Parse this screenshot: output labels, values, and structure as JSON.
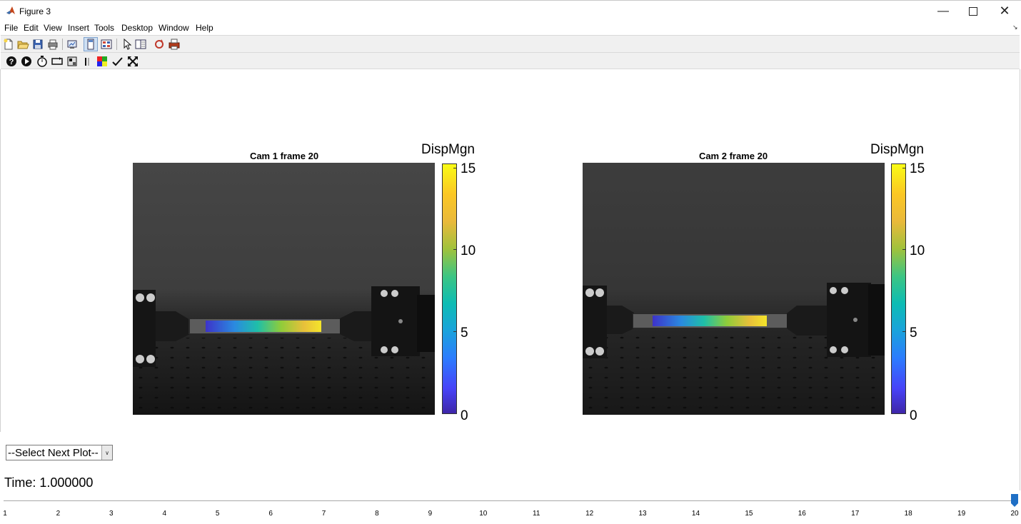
{
  "window": {
    "title": "Figure 3"
  },
  "menu": [
    "File",
    "Edit",
    "View",
    "Insert",
    "Tools",
    "Desktop",
    "Window",
    "Help"
  ],
  "toolbar1": [
    {
      "icon": "new-figure-icon"
    },
    {
      "icon": "open-file-icon"
    },
    {
      "icon": "save-icon"
    },
    {
      "icon": "print-icon"
    },
    {
      "icon": "link-plot-icon"
    },
    {
      "icon": "dock-figure-icon"
    },
    {
      "icon": "property-inspector-icon"
    },
    {
      "icon": "edit-plot-icon"
    },
    {
      "icon": "plot-browser-icon"
    },
    {
      "icon": "rotate-3d-icon"
    },
    {
      "icon": "print-figure-icon"
    }
  ],
  "toolbar2": [
    {
      "icon": "help-icon"
    },
    {
      "icon": "play-icon"
    },
    {
      "icon": "timer-icon"
    },
    {
      "icon": "loop-icon"
    },
    {
      "icon": "frame-export-icon"
    },
    {
      "icon": "pause-icon"
    },
    {
      "icon": "colormap-icon"
    },
    {
      "icon": "check-icon"
    },
    {
      "icon": "expand-icon"
    }
  ],
  "plots": [
    {
      "title": "Cam 1 frame 20",
      "colorbar_label": "DispMgn",
      "ticks": [
        "0",
        "5",
        "10",
        "15"
      ]
    },
    {
      "title": "Cam 2 frame 20",
      "colorbar_label": "DispMgn",
      "ticks": [
        "0",
        "5",
        "10",
        "15"
      ]
    }
  ],
  "colorbar_range": [
    0,
    15.2
  ],
  "controls": {
    "dropdown_selected": "--Select Next Plot--",
    "time_text": "Time: 1.000000",
    "slider_value": 20,
    "slider_ticks": [
      "1",
      "2",
      "3",
      "4",
      "5",
      "6",
      "7",
      "8",
      "9",
      "10",
      "11",
      "12",
      "13",
      "14",
      "15",
      "16",
      "17",
      "18",
      "19",
      "20"
    ]
  },
  "colors": {
    "slider_thumb": "#1f6fc5",
    "toolbar_bg": "#f0f0f0"
  }
}
